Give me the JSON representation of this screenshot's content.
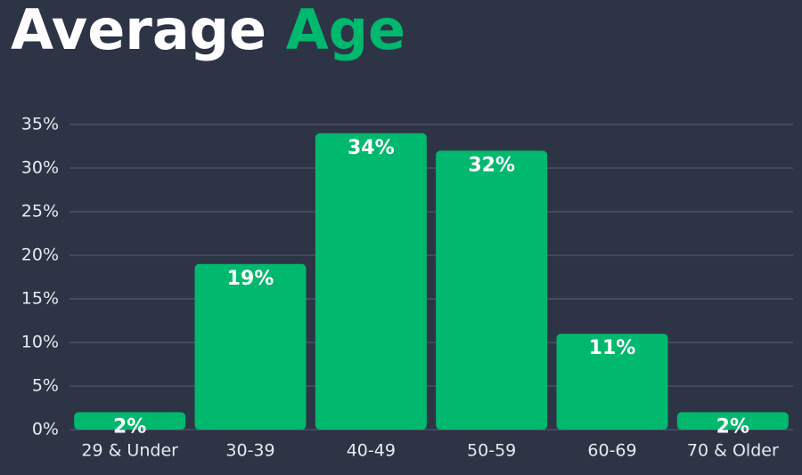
{
  "chart_data": {
    "type": "bar",
    "title_parts": [
      "Average",
      "Age"
    ],
    "categories": [
      "29 & Under",
      "30-39",
      "40-49",
      "50-59",
      "60-69",
      "70 & Older"
    ],
    "values": [
      2,
      19,
      34,
      32,
      11,
      2
    ],
    "value_labels": [
      "2%",
      "19%",
      "34%",
      "32%",
      "11%",
      "2%"
    ],
    "color": "#00b86e",
    "ylim": [
      0,
      35
    ],
    "yticks": [
      {
        "value": 0,
        "label": "0%"
      },
      {
        "value": 5,
        "label": "5%"
      },
      {
        "value": 10,
        "label": "10%"
      },
      {
        "value": 15,
        "label": "15%"
      },
      {
        "value": 20,
        "label": "20%"
      },
      {
        "value": 25,
        "label": "25%"
      },
      {
        "value": 30,
        "label": "30%"
      },
      {
        "value": 35,
        "label": "35%"
      }
    ],
    "grid": true
  }
}
